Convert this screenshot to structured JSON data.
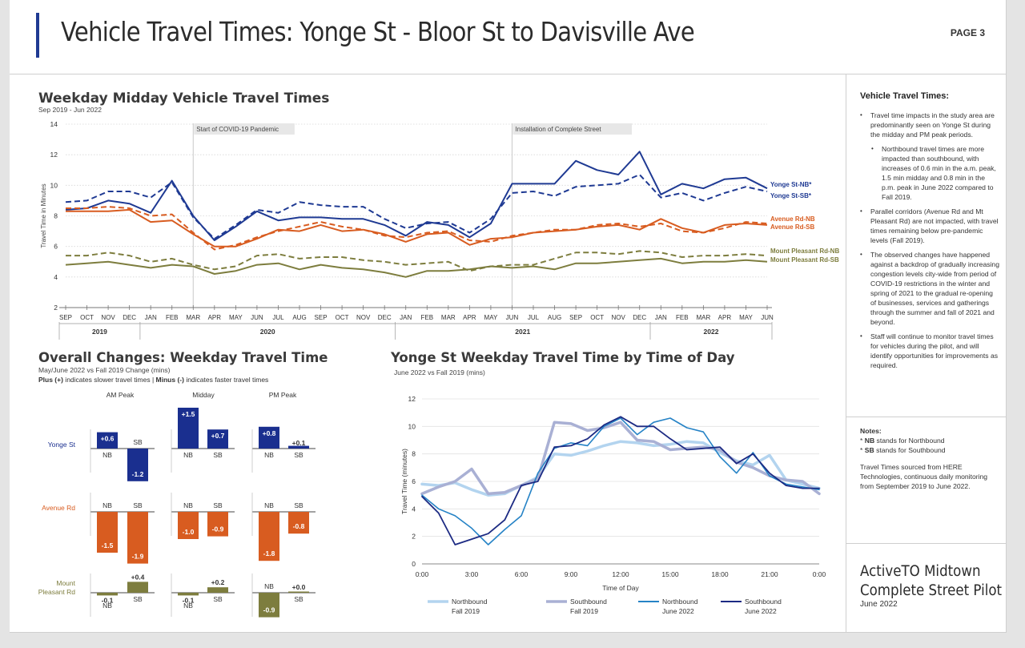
{
  "header": {
    "title": "Vehicle Travel Times: Yonge St - Bloor St to Davisville Ave",
    "page": "PAGE 3"
  },
  "sidebar": {
    "heading": "Vehicle Travel Times:",
    "bullets": [
      "Travel time impacts in the study area are predominantly seen on Yonge St during the midday and PM peak periods.",
      "Northbound travel times are more impacted than southbound, with increases of 0.6 min in the a.m. peak, 1.5 min midday and 0.8 min in the p.m. peak in June 2022 compared to Fall 2019.",
      "Parallel corridors (Avenue Rd and Mt Pleasant Rd) are not impacted, with travel times remaining below pre-pandemic levels (Fall 2019).",
      "The observed changes have happened against a backdrop of gradually increasing congestion levels city-wide from period of COVID-19 restrictions in the winter and spring of 2021 to the gradual re-opening of businesses, services and gatherings through the summer and fall of 2021 and beyond.",
      "Staff will continue to monitor travel times for vehicles during the pilot, and will identify opportunities for improvements as required."
    ],
    "notes_heading": "Notes:",
    "note_nb_key": "NB",
    "note_nb_text": " stands for Northbound",
    "note_sb_key": "SB",
    "note_sb_text": " stands for Southbound",
    "source": "Travel Times sourced from HERE Technologies, continuous daily monitoring from September 2019 to June 2022.",
    "brand_line1": "ActiveTO Midtown",
    "brand_line2": "Complete Street Pilot",
    "brand_date": "June 2022"
  },
  "colors": {
    "yonge": "#1f3a93",
    "avenue": "#d85c20",
    "mount": "#7d7d3e",
    "nb2019": "#b3d4ef",
    "sb2019": "#a9b0d4",
    "nb2022": "#2683c6",
    "sb2022": "#1c2a83",
    "bar_yonge": "#1a2f8f",
    "bar_avenue": "#d85c20",
    "bar_mount": "#7d7d3e"
  },
  "chart_data": [
    {
      "type": "line",
      "title": "Weekday Midday Vehicle Travel Times",
      "subtitle": "Sep 2019 - Jun 2022",
      "ylabel": "Travel Time in Minutes",
      "ylim": [
        2,
        14
      ],
      "yticks": [
        2,
        4,
        6,
        8,
        10,
        12,
        14
      ],
      "x": [
        "SEP",
        "OCT",
        "NOV",
        "DEC",
        "JAN",
        "FEB",
        "MAR",
        "APR",
        "MAY",
        "JUN",
        "JUL",
        "AUG",
        "SEP",
        "OCT",
        "NOV",
        "DEC",
        "JAN",
        "FEB",
        "MAR",
        "APR",
        "MAY",
        "JUN",
        "JUL",
        "AUG",
        "SEP",
        "OCT",
        "NOV",
        "DEC",
        "JAN",
        "FEB",
        "MAR",
        "APR",
        "MAY",
        "JUN"
      ],
      "years": [
        {
          "label": "2019",
          "from": 0,
          "to": 4
        },
        {
          "label": "2020",
          "from": 4,
          "to": 16
        },
        {
          "label": "2021",
          "from": 16,
          "to": 28
        },
        {
          "label": "2022",
          "from": 28,
          "to": 33
        }
      ],
      "annotations": [
        {
          "index": 6,
          "text": "Start of COVID-19 Pandemic"
        },
        {
          "index": 21,
          "text": "Installation of Complete Street"
        }
      ],
      "series": [
        {
          "name": "Yonge St-NB*",
          "color_key": "yonge",
          "dashed": false,
          "values": [
            8.4,
            8.5,
            9.0,
            8.8,
            8.2,
            10.3,
            8.0,
            6.4,
            7.3,
            8.3,
            7.7,
            7.9,
            7.9,
            7.8,
            7.8,
            7.4,
            6.7,
            7.6,
            7.4,
            6.6,
            7.5,
            10.1,
            10.1,
            10.1,
            11.6,
            11.0,
            10.7,
            12.2,
            9.4,
            10.1,
            9.8,
            10.4,
            10.5,
            9.8
          ]
        },
        {
          "name": "Yonge St-SB*",
          "color_key": "yonge",
          "dashed": true,
          "values": [
            8.9,
            9.0,
            9.6,
            9.6,
            9.2,
            10.2,
            7.9,
            6.5,
            7.4,
            8.4,
            8.2,
            8.9,
            8.7,
            8.6,
            8.6,
            7.8,
            7.2,
            7.5,
            7.6,
            6.9,
            7.8,
            9.5,
            9.6,
            9.3,
            9.9,
            10.0,
            10.1,
            10.7,
            9.2,
            9.5,
            9.0,
            9.5,
            9.9,
            9.6
          ]
        },
        {
          "name": "Avenue Rd-NB",
          "color_key": "avenue",
          "dashed": false,
          "values": [
            8.3,
            8.3,
            8.3,
            8.4,
            7.6,
            7.7,
            6.8,
            6.0,
            6.0,
            6.5,
            7.1,
            7.0,
            7.4,
            7.0,
            7.1,
            6.8,
            6.3,
            6.8,
            6.9,
            6.1,
            6.5,
            6.6,
            6.9,
            7.0,
            7.1,
            7.3,
            7.4,
            7.1,
            7.8,
            7.2,
            6.9,
            7.4,
            7.5,
            7.4
          ]
        },
        {
          "name": "Avenue Rd-SB",
          "color_key": "avenue",
          "dashed": true,
          "values": [
            8.5,
            8.5,
            8.6,
            8.5,
            8.0,
            8.1,
            6.9,
            5.8,
            6.1,
            6.6,
            7.0,
            7.3,
            7.6,
            7.3,
            7.1,
            6.7,
            6.6,
            6.9,
            7.0,
            6.4,
            6.3,
            6.7,
            6.9,
            7.1,
            7.1,
            7.4,
            7.5,
            7.3,
            7.5,
            7.0,
            6.9,
            7.2,
            7.6,
            7.5
          ]
        },
        {
          "name": "Mount Pleasant Rd-NB",
          "color_key": "mount",
          "dashed": true,
          "values": [
            5.4,
            5.4,
            5.6,
            5.4,
            5.0,
            5.2,
            4.8,
            4.5,
            4.7,
            5.4,
            5.5,
            5.2,
            5.3,
            5.3,
            5.1,
            5.0,
            4.8,
            4.9,
            5.0,
            4.4,
            4.7,
            4.8,
            4.8,
            5.2,
            5.6,
            5.6,
            5.5,
            5.7,
            5.6,
            5.3,
            5.4,
            5.4,
            5.5,
            5.4
          ]
        },
        {
          "name": "Mount Pleasant Rd-SB",
          "color_key": "mount",
          "dashed": false,
          "values": [
            4.8,
            4.9,
            5.0,
            4.8,
            4.6,
            4.8,
            4.7,
            4.2,
            4.4,
            4.8,
            4.9,
            4.5,
            4.8,
            4.6,
            4.5,
            4.3,
            4.0,
            4.4,
            4.4,
            4.5,
            4.7,
            4.6,
            4.7,
            4.5,
            4.9,
            4.9,
            5.0,
            5.1,
            5.2,
            4.9,
            5.0,
            5.0,
            5.1,
            5.0
          ]
        }
      ]
    },
    {
      "type": "bar",
      "title": "Overall Changes: Weekday Travel Time",
      "subtitle": "May/June 2022 vs Fall 2019 Change (mins)",
      "legend_plus": "Plus (+)",
      "legend_plus_text": " indicates slower travel times  |  ",
      "legend_minus": "Minus (-)",
      "legend_minus_text": " indicates faster travel times",
      "periods": [
        "AM Peak",
        "Midday",
        "PM Peak"
      ],
      "corridors": [
        {
          "name": "Yonge St",
          "color_key": "bar_yonge",
          "values": [
            [
              0.6,
              -1.2
            ],
            [
              1.5,
              0.7
            ],
            [
              0.8,
              0.1
            ]
          ],
          "labels": [
            [
              "+0.6",
              "-1.2"
            ],
            [
              "+1.5",
              "+0.7"
            ],
            [
              "+0.8",
              "+0.1"
            ]
          ]
        },
        {
          "name": "Avenue Rd",
          "color_key": "bar_avenue",
          "values": [
            [
              -1.5,
              -1.9
            ],
            [
              -1.0,
              -0.9
            ],
            [
              -1.8,
              -0.8
            ]
          ],
          "labels": [
            [
              "-1.5",
              "-1.9"
            ],
            [
              "-1.0",
              "-0.9"
            ],
            [
              "-1.8",
              "-0.8"
            ]
          ]
        },
        {
          "name": "Mount Pleasant Rd",
          "color_key": "bar_mount",
          "values": [
            [
              -0.1,
              0.4
            ],
            [
              -0.1,
              0.2
            ],
            [
              -0.9,
              0.0
            ]
          ],
          "labels": [
            [
              "-0.1",
              "+0.4"
            ],
            [
              "-0.1",
              "+0.2"
            ],
            [
              "-0.9",
              "+0.0"
            ]
          ]
        }
      ],
      "directions": [
        "NB",
        "SB"
      ]
    },
    {
      "type": "line",
      "title": "Yonge St Weekday Travel Time by Time of Day",
      "subtitle": "June 2022 vs Fall 2019 (mins)",
      "xlabel": "Time of Day",
      "ylabel": "Travel Time (minutes)",
      "ylim": [
        0,
        12
      ],
      "yticks": [
        0,
        2,
        4,
        6,
        8,
        10,
        12
      ],
      "xlim": [
        0,
        24
      ],
      "xticks": [
        0,
        3,
        6,
        9,
        12,
        15,
        18,
        21,
        24
      ],
      "xtick_labels": [
        "0:00",
        "3:00",
        "6:00",
        "9:00",
        "12:00",
        "15:00",
        "18:00",
        "21:00",
        "0:00"
      ],
      "x": [
        0,
        1,
        2,
        3,
        4,
        5,
        6,
        7,
        8,
        9,
        10,
        11,
        12,
        13,
        14,
        15,
        16,
        17,
        18,
        19,
        20,
        21,
        22,
        23,
        24
      ],
      "series": [
        {
          "name": "Northbound",
          "period": "Fall 2019",
          "color_key": "nb2019",
          "width": 3.5,
          "values": [
            5.8,
            5.7,
            5.9,
            5.4,
            5.0,
            5.1,
            5.7,
            6.3,
            8.0,
            7.9,
            8.2,
            8.6,
            8.9,
            8.8,
            8.6,
            8.7,
            8.9,
            8.8,
            8.1,
            7.5,
            7.2,
            7.9,
            6.1,
            5.8,
            5.5
          ]
        },
        {
          "name": "Southbound",
          "period": "Fall 2019",
          "color_key": "sb2019",
          "width": 3.5,
          "values": [
            5.1,
            5.6,
            6.0,
            6.9,
            5.1,
            5.2,
            5.7,
            6.2,
            10.3,
            10.2,
            9.7,
            9.9,
            10.3,
            9.0,
            8.9,
            8.3,
            8.4,
            8.5,
            8.3,
            7.4,
            7.0,
            6.4,
            6.1,
            6.0,
            5.1
          ]
        },
        {
          "name": "Northbound",
          "period": "June 2022",
          "color_key": "nb2022",
          "width": 1.6,
          "values": [
            5.0,
            4.0,
            3.5,
            2.6,
            1.4,
            2.5,
            3.5,
            6.6,
            8.4,
            8.8,
            8.6,
            10.0,
            10.6,
            9.4,
            10.3,
            10.6,
            9.9,
            9.6,
            7.8,
            6.6,
            8.1,
            6.4,
            5.8,
            5.6,
            5.4
          ]
        },
        {
          "name": "Southbound",
          "period": "June 2022",
          "color_key": "sb2022",
          "width": 1.8,
          "values": [
            4.9,
            3.7,
            1.4,
            1.8,
            2.2,
            3.2,
            5.7,
            6.0,
            8.5,
            8.6,
            9.1,
            10.1,
            10.7,
            10.0,
            10.0,
            9.1,
            8.3,
            8.4,
            8.5,
            7.3,
            8.0,
            6.6,
            5.7,
            5.5,
            5.5
          ]
        }
      ]
    }
  ]
}
